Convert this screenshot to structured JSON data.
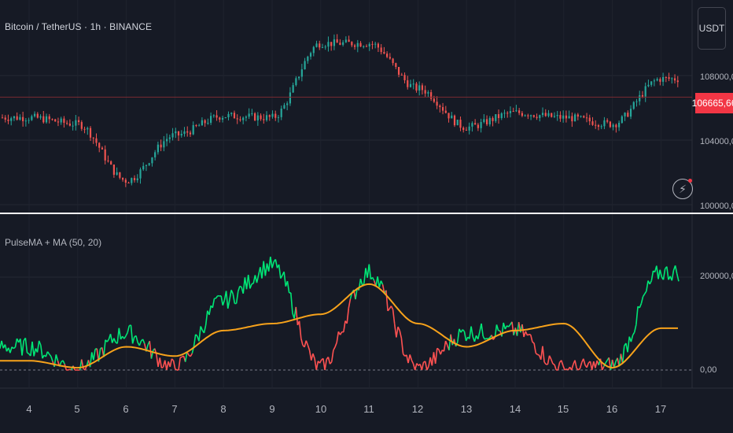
{
  "header": {
    "title": "Bitcoin / TetherUS · 1h · BINANCE"
  },
  "currency_button": {
    "label": "USDT"
  },
  "price_axis": {
    "labels": [
      "108000,00",
      "104000,00",
      "100000,00"
    ],
    "last_price": "106665,66"
  },
  "indicator": {
    "title": "PulseMA + MA (50, 20)",
    "axis_labels": [
      "200000,00",
      "0,00"
    ]
  },
  "time_axis": {
    "labels": [
      "4",
      "5",
      "6",
      "7",
      "8",
      "9",
      "10",
      "11",
      "12",
      "13",
      "14",
      "15",
      "16",
      "17"
    ]
  },
  "icons": {
    "alert": "lightning-icon"
  },
  "colors": {
    "up": "#26a69a",
    "down": "#ef5350",
    "pulse_up": "#00e676",
    "pulse_down": "#ff5252",
    "ma": "#f7a21b",
    "last_price": "#f23645"
  },
  "chart_data": [
    {
      "type": "line",
      "title": "Bitcoin / TetherUS · 1h · BINANCE",
      "series": [
        {
          "name": "",
          "x": [
            "4",
            "5",
            "6",
            "7",
            "8",
            "9",
            "10",
            "11",
            "12",
            "13",
            "14",
            "15",
            "16",
            "17"
          ],
          "values": [
            105400,
            105000,
            101500,
            104300,
            105500,
            105400,
            110000,
            110000,
            107200,
            104800,
            105700,
            105400,
            105000,
            107800
          ]
        }
      ],
      "ylim": [
        100000,
        111800
      ],
      "last_price": 106665.66
    },
    {
      "type": "line",
      "title": "PulseMA + MA (50, 20)",
      "series": [
        {
          "name": "PulseMA",
          "x": [
            "4",
            "5",
            "6",
            "7",
            "8",
            "9",
            "10",
            "11",
            "12",
            "13",
            "14",
            "15",
            "16",
            "17"
          ],
          "values": [
            50000,
            3000,
            80000,
            5000,
            150000,
            225000,
            5000,
            210000,
            3000,
            80000,
            85000,
            3000,
            10000,
            210000
          ]
        },
        {
          "name": "MA",
          "x": [
            "4",
            "5",
            "6",
            "7",
            "8",
            "9",
            "10",
            "11",
            "12",
            "13",
            "14",
            "15",
            "16",
            "17"
          ],
          "values": [
            20000,
            5000,
            50000,
            30000,
            85000,
            100000,
            120000,
            185000,
            100000,
            50000,
            85000,
            100000,
            5000,
            90000
          ]
        }
      ],
      "ylim": [
        -30000,
        310000
      ]
    }
  ]
}
